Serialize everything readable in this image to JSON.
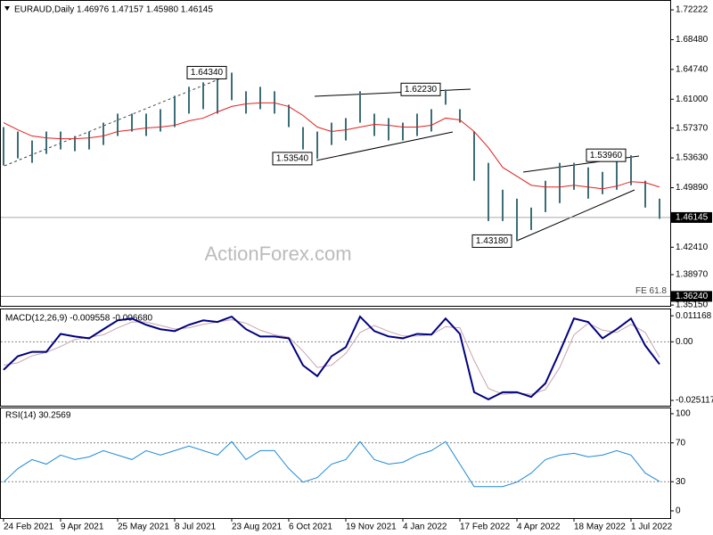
{
  "chart_data": [
    {
      "type": "ohlc",
      "title": "EURAUD,Daily  1.46976 1.47157 1.45980 1.46145",
      "watermark": "ActionForex.com",
      "categories": [
        "24 Feb 2021",
        null,
        null,
        null,
        "9 Apr 2021",
        null,
        null,
        null,
        "25 May 2021",
        null,
        null,
        null,
        "8 Jul 2021",
        null,
        null,
        null,
        "23 Aug 2021",
        null,
        null,
        null,
        "6 Oct 2021",
        null,
        null,
        null,
        "19 Nov 2021",
        null,
        null,
        null,
        "4 Jan 2022",
        null,
        null,
        null,
        "17 Feb 2022",
        null,
        null,
        null,
        "4 Apr 2022",
        null,
        null,
        null,
        "18 May 2022",
        null,
        null,
        null,
        "1 Jul 2022",
        null,
        null
      ],
      "color": "#3c6e78",
      "high": [
        1.575,
        1.5694,
        1.5582,
        1.5694,
        1.5694,
        1.5638,
        1.5694,
        1.5806,
        1.5919,
        1.5919,
        1.5919,
        1.5975,
        1.6144,
        1.6256,
        1.6312,
        1.6368,
        1.6434,
        1.62,
        1.6256,
        1.62,
        1.6031,
        1.575,
        1.5694,
        1.5806,
        1.5863,
        1.62,
        1.5919,
        1.5863,
        1.5806,
        1.5919,
        1.5975,
        1.6223,
        1.5975,
        1.5694,
        1.5301,
        1.4963,
        1.4851,
        1.4739,
        1.5076,
        1.5301,
        1.5301,
        1.5244,
        1.5188,
        1.5379,
        1.5396,
        1.5076,
        1.4851
      ],
      "low": [
        1.5267,
        1.5357,
        1.5301,
        1.5413,
        1.5469,
        1.5447,
        1.5469,
        1.5525,
        1.5638,
        1.5694,
        1.5638,
        1.5694,
        1.575,
        1.5919,
        1.5975,
        1.5919,
        1.6087,
        1.5919,
        1.5975,
        1.5919,
        1.575,
        1.5469,
        1.5354,
        1.5525,
        1.5582,
        1.5806,
        1.5638,
        1.5582,
        1.5582,
        1.5638,
        1.5694,
        1.6031,
        1.5806,
        1.5076,
        1.457,
        1.457,
        1.4318,
        1.4458,
        1.4682,
        1.4795,
        1.4963,
        1.4851,
        1.4907,
        1.4963,
        1.502,
        1.4739,
        1.4598
      ],
      "ma": {
        "color": "#e02020",
        "values": [
          1.5806,
          1.5716,
          1.5638,
          1.5615,
          1.5604,
          1.5604,
          1.5615,
          1.5638,
          1.5694,
          1.5716,
          1.5739,
          1.575,
          1.5773,
          1.5829,
          1.5863,
          1.5941,
          1.6009,
          1.6042,
          1.6054,
          1.6054,
          1.6009,
          1.5896,
          1.575,
          1.5694,
          1.5716,
          1.575,
          1.5784,
          1.5773,
          1.575,
          1.575,
          1.5773,
          1.5863,
          1.584,
          1.5694,
          1.5492,
          1.5244,
          1.5132,
          1.502,
          1.4997,
          1.4997,
          1.502,
          1.4997,
          1.4975,
          1.5008,
          1.5065,
          1.5053,
          1.4997
        ]
      },
      "ylim": [
        1.3505,
        1.7335
      ],
      "yticks": [
        1.72222,
        {
          "value": 1.6848,
          "label": "1.68480"
        },
        {
          "value": 1.6474,
          "label": "1.64740"
        },
        {
          "value": 1.61,
          "label": "1.61000"
        },
        {
          "value": 1.5737,
          "label": "1.57370"
        },
        {
          "value": 1.5363,
          "label": "1.53630"
        },
        {
          "value": 1.4989,
          "label": "1.49890"
        },
        {
          "value": 1.4241,
          "label": "1.42410"
        },
        {
          "value": 1.3897,
          "label": "1.38970"
        },
        {
          "value": 1.3515,
          "label": "1.35150"
        }
      ],
      "price_line": {
        "value": 1.46145,
        "label": "1.46145"
      },
      "fe_line": {
        "value": 1.3624,
        "label": "1.36240",
        "text": "FE 61.8"
      },
      "annotations": [
        {
          "value": 1.6434,
          "label": "1.64340"
        },
        {
          "value": 1.6223,
          "label": "1.62230"
        },
        {
          "value": 1.5354,
          "label": "1.53540"
        },
        {
          "value": 1.5396,
          "label": "1.53960"
        },
        {
          "value": 1.4318,
          "label": "1.43180"
        }
      ],
      "grid": false
    },
    {
      "type": "line",
      "title": "MACD(12,26,9) -0.009558 -0.006680",
      "series": [
        {
          "color": "#000080",
          "values": [
            -0.012,
            -0.0062,
            -0.0043,
            -0.0043,
            0.0034,
            0.0023,
            0.0015,
            0.0054,
            0.0092,
            0.01,
            0.0073,
            0.0054,
            0.0046,
            0.0073,
            0.0092,
            0.0085,
            0.0108,
            0.0054,
            0.0023,
            0.0023,
            0.0015,
            -0.0101,
            -0.0147,
            -0.0062,
            -0.0023,
            0.0108,
            0.0046,
            0.0023,
            0.0015,
            0.0034,
            0.0031,
            0.01,
            0.0034,
            -0.0216,
            -0.0247,
            -0.0216,
            -0.0216,
            -0.0236,
            -0.0178,
            -0.0043,
            0.01,
            0.0085,
            0.0015,
            0.0054,
            0.01,
            -0.0016,
            -0.0096
          ]
        },
        {
          "color": "#c9a3ac",
          "values": [
            -0.01,
            -0.009,
            -0.006,
            -0.0045,
            -0.002,
            0.001,
            0.002,
            0.003,
            0.006,
            0.0085,
            0.0085,
            0.007,
            0.0055,
            0.006,
            0.0075,
            0.0085,
            0.0095,
            0.008,
            0.005,
            0.003,
            0.002,
            -0.004,
            -0.011,
            -0.01,
            -0.005,
            0.004,
            0.007,
            0.0045,
            0.0025,
            0.0025,
            0.003,
            0.0065,
            0.006,
            -0.008,
            -0.02,
            -0.0225,
            -0.022,
            -0.0225,
            -0.0205,
            -0.011,
            0.003,
            0.008,
            0.005,
            0.004,
            0.0075,
            0.004,
            -0.0067
          ]
        }
      ],
      "ylim": [
        -0.0274,
        0.0139
      ],
      "yticks": [
        -0.025117,
        {
          "value": 0,
          "label": "0.00"
        },
        0.011168
      ],
      "grid": "interior"
    },
    {
      "type": "line",
      "title": "RSI(14) 30.2569",
      "series": [
        {
          "color": "#1e8ad6",
          "values": [
            29.6,
            43.5,
            52.8,
            48.1,
            57.4,
            52.8,
            55.6,
            62.0,
            57.4,
            52.8,
            62.0,
            57.4,
            62.0,
            66.7,
            62.0,
            57.4,
            71.3,
            52.8,
            62.0,
            62.0,
            43.5,
            29.6,
            34.3,
            48.1,
            52.8,
            71.3,
            52.8,
            48.1,
            50.0,
            57.4,
            62.0,
            71.3,
            48.1,
            25.0,
            25.0,
            25.0,
            29.6,
            38.9,
            52.8,
            57.4,
            59.3,
            55.6,
            57.4,
            62.0,
            57.4,
            38.9,
            30.3
          ]
        }
      ],
      "ylim": [
        -7.4,
        105.5
      ],
      "yticks": [
        0,
        30,
        70,
        100
      ],
      "grid": "interior"
    }
  ]
}
